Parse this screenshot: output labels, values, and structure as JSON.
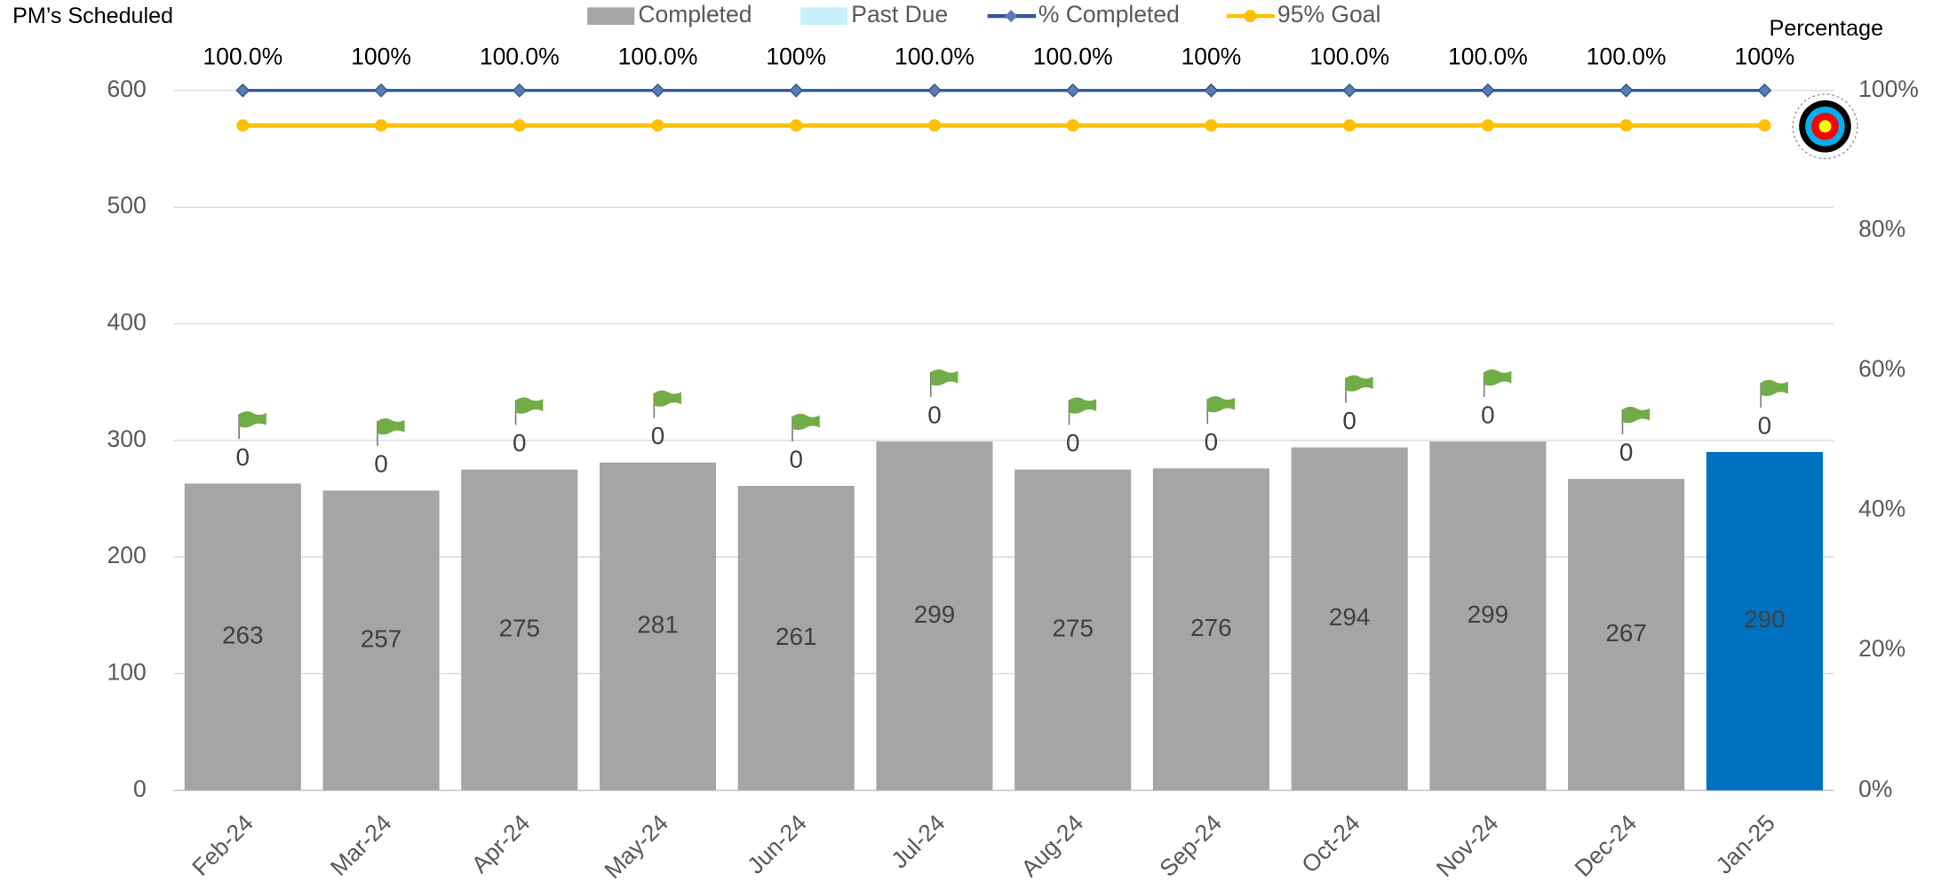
{
  "chart_data": {
    "type": "bar",
    "stacked": true,
    "y_axis_title": "PM’s Scheduled",
    "y2_axis_title": "Percentage",
    "categories": [
      "Feb-24",
      "Mar-24",
      "Apr-24",
      "May-24",
      "Jun-24",
      "Jul-24",
      "Aug-24",
      "Sep-24",
      "Oct-24",
      "Nov-24",
      "Dec-24",
      "Jan-25"
    ],
    "series": [
      {
        "name": "Completed",
        "type": "bar",
        "color": "#a5a5a5",
        "colors": [
          "#a5a5a5",
          "#a5a5a5",
          "#a5a5a5",
          "#a5a5a5",
          "#a5a5a5",
          "#a5a5a5",
          "#a5a5a5",
          "#a5a5a5",
          "#a5a5a5",
          "#a5a5a5",
          "#a5a5a5",
          "#0070c0"
        ],
        "values": [
          263,
          257,
          275,
          281,
          261,
          299,
          275,
          276,
          294,
          299,
          267,
          290
        ]
      },
      {
        "name": "Past Due",
        "type": "bar",
        "color": "#c5effb",
        "values": [
          0,
          0,
          0,
          0,
          0,
          0,
          0,
          0,
          0,
          0,
          0,
          0
        ]
      },
      {
        "name": "% Completed",
        "type": "line",
        "axis": "y2",
        "color": "#2f5597",
        "marker": "diamond",
        "values": [
          100,
          100,
          100,
          100,
          100,
          100,
          100,
          100,
          100,
          100,
          100,
          100
        ],
        "value_labels": [
          "100.0%",
          "100%",
          "100.0%",
          "100.0%",
          "100%",
          "100.0%",
          "100.0%",
          "100%",
          "100.0%",
          "100.0%",
          "100.0%",
          "100%"
        ]
      },
      {
        "name": "95% Goal",
        "type": "line",
        "axis": "y2",
        "color": "#ffc000",
        "marker": "circle",
        "values": [
          95,
          95,
          95,
          95,
          95,
          95,
          95,
          95,
          95,
          95,
          95,
          95
        ]
      }
    ],
    "ylim": [
      0,
      600
    ],
    "yticks": [
      0,
      100,
      200,
      300,
      400,
      500,
      600
    ],
    "y2lim": [
      0,
      100
    ],
    "y2ticks": [
      {
        "value": 0,
        "label": "0%"
      },
      {
        "value": 20,
        "label": "20%"
      },
      {
        "value": 40,
        "label": "40%"
      },
      {
        "value": 60,
        "label": "60%"
      },
      {
        "value": 80,
        "label": "80%"
      },
      {
        "value": 100,
        "label": "100%"
      }
    ],
    "grid": true,
    "legend": "top"
  }
}
